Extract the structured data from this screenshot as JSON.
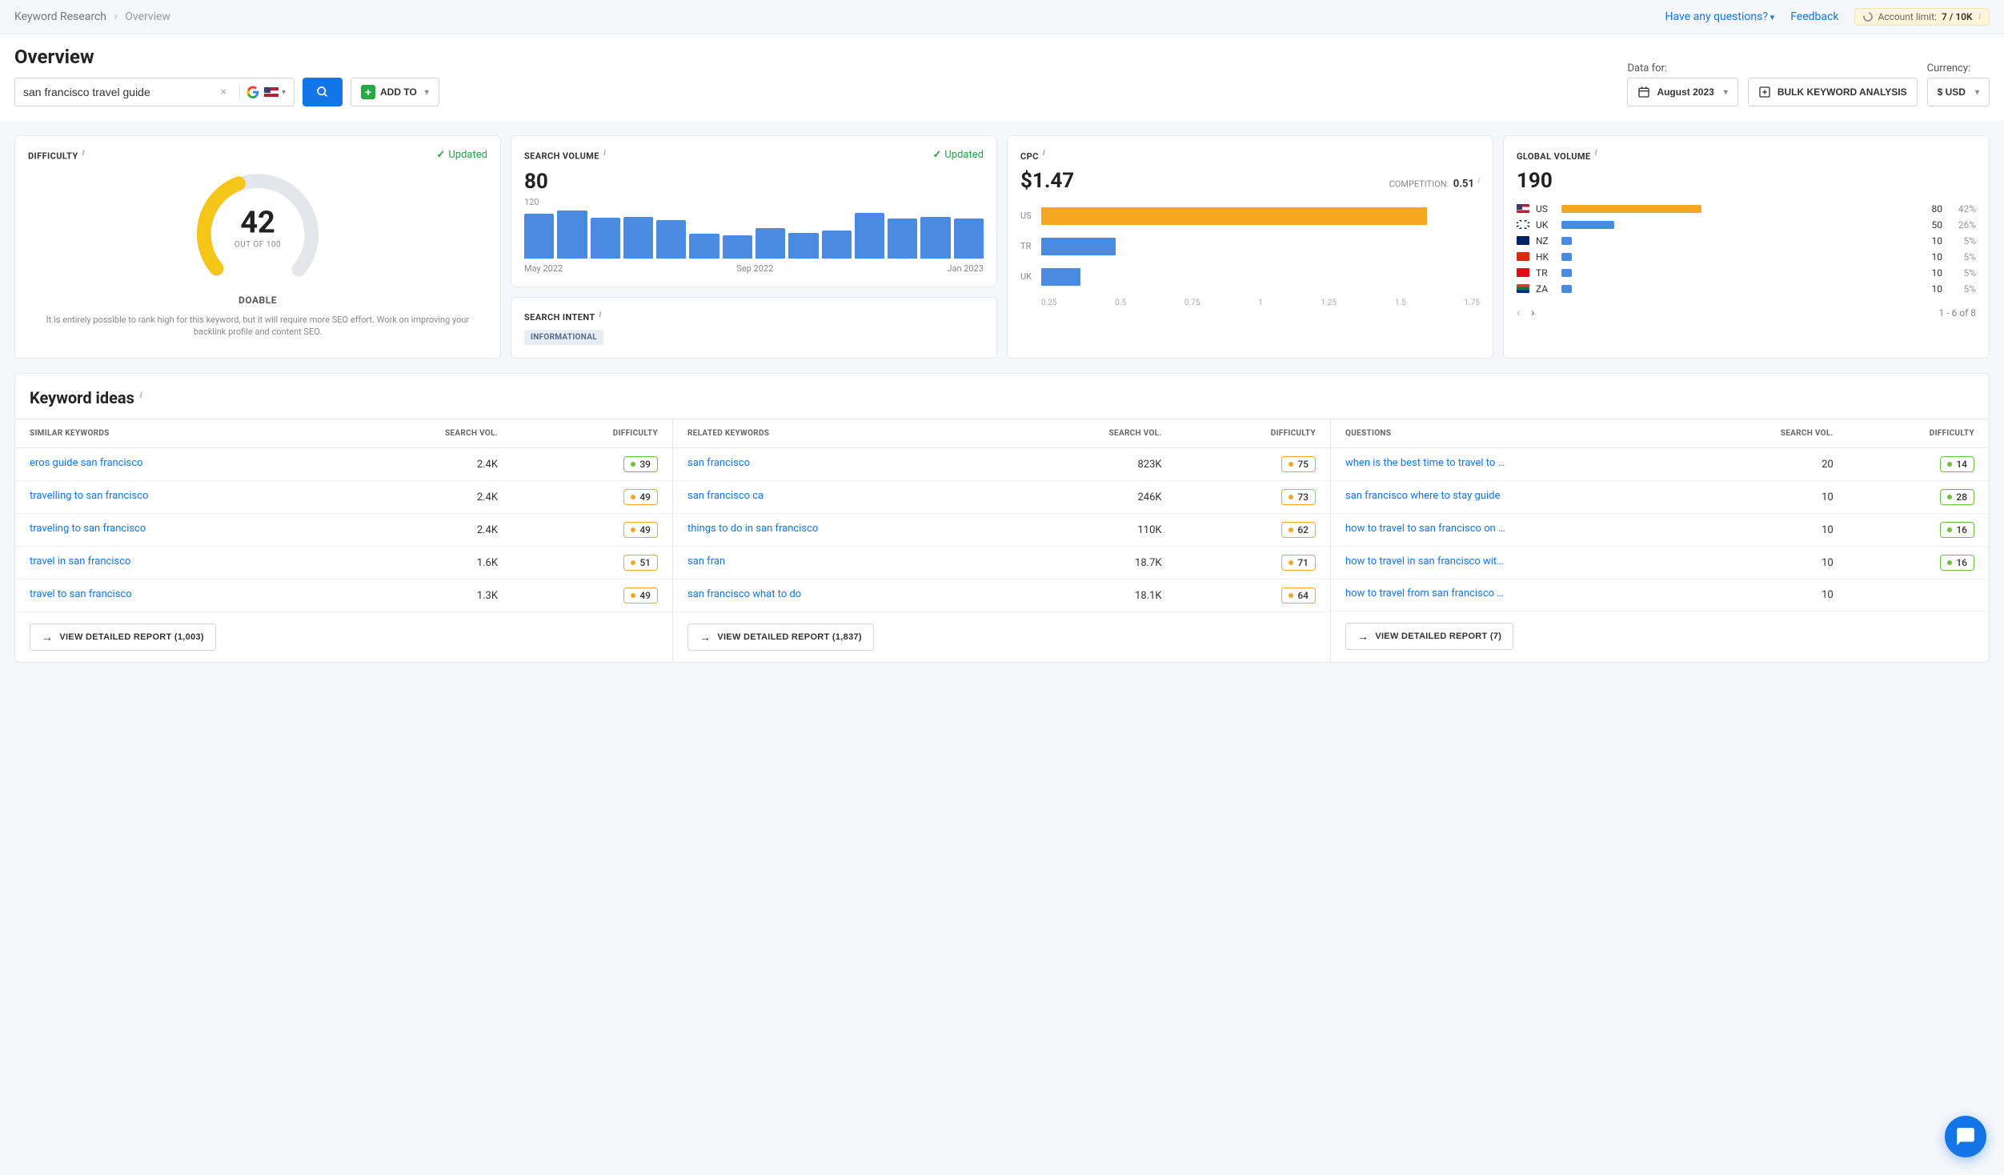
{
  "breadcrumb": {
    "parent": "Keyword Research",
    "current": "Overview"
  },
  "topbar": {
    "questions": "Have any questions?",
    "feedback": "Feedback",
    "account_label": "Account limit:",
    "account_value": "7 / 10K"
  },
  "header": {
    "title": "Overview",
    "search_value": "san francisco travel guide",
    "addto": "ADD TO",
    "datafor_label": "Data for:",
    "datafor_value": "August 2023",
    "bulk": "BULK KEYWORD ANALYSIS",
    "currency_label": "Currency:",
    "currency_value": "$ USD"
  },
  "difficulty": {
    "title": "DIFFICULTY",
    "updated": "Updated",
    "value": "42",
    "value_num": 42,
    "out_of": "OUT OF 100",
    "label": "DOABLE",
    "desc": "It is entirely possible to rank high for this keyword, but it will require more SEO effort. Work on improving your backlink profile and content SEO.",
    "gauge_color": "#f5c518",
    "gauge_track": "#e3e6ea"
  },
  "search_volume": {
    "title": "SEARCH VOLUME",
    "updated": "Updated",
    "value": "80",
    "y_label": "120",
    "bars": [
      88,
      95,
      80,
      82,
      76,
      48,
      45,
      60,
      50,
      55,
      90,
      78,
      82,
      78
    ],
    "bar_color": "#4a8ae0",
    "x_labels": [
      "May 2022",
      "Sep 2022",
      "Jan 2023"
    ]
  },
  "search_intent": {
    "title": "SEARCH INTENT",
    "pill": "INFORMATIONAL"
  },
  "cpc": {
    "title": "CPC",
    "value": "$1.47",
    "competition_label": "COMPETITION:",
    "competition_value": "0.51",
    "bars": [
      {
        "label": "US",
        "value": 0.88,
        "color": "#f5a623"
      },
      {
        "label": "TR",
        "value": 0.17,
        "color": "#4a8ae0"
      },
      {
        "label": "UK",
        "value": 0.09,
        "color": "#4a8ae0"
      }
    ],
    "axis": [
      "0.25",
      "0.5",
      "0.75",
      "1",
      "1.25",
      "1.5",
      "1.75"
    ]
  },
  "global": {
    "title": "GLOBAL VOLUME",
    "value": "190",
    "rows": [
      {
        "code": "US",
        "flag": "flag-us",
        "width": 40,
        "val": "80",
        "pct": "42%",
        "color": "#f5a623"
      },
      {
        "code": "UK",
        "flag": "flag-uk",
        "width": 15,
        "val": "50",
        "pct": "26%",
        "color": "#4a8ae0"
      },
      {
        "code": "NZ",
        "flag": "flag-nz",
        "width": 3,
        "val": "10",
        "pct": "5%",
        "color": "#4a8ae0"
      },
      {
        "code": "HK",
        "flag": "flag-hk",
        "width": 3,
        "val": "10",
        "pct": "5%",
        "color": "#4a8ae0"
      },
      {
        "code": "TR",
        "flag": "flag-tr",
        "width": 3,
        "val": "10",
        "pct": "5%",
        "color": "#4a8ae0"
      },
      {
        "code": "ZA",
        "flag": "flag-za",
        "width": 3,
        "val": "10",
        "pct": "5%",
        "color": "#4a8ae0"
      }
    ],
    "pager": "1 - 6 of 8"
  },
  "ideas": {
    "title": "Keyword ideas",
    "col_headers": {
      "similar": "SIMILAR KEYWORDS",
      "related": "RELATED KEYWORDS",
      "questions": "QUESTIONS",
      "vol": "SEARCH VOL.",
      "diff": "DIFFICULTY"
    },
    "similar": [
      {
        "kw": "eros guide san francisco",
        "vol": "2.4K",
        "diff": 39,
        "color": "#6fbf44"
      },
      {
        "kw": "travelling to san francisco",
        "vol": "2.4K",
        "diff": 49,
        "color": "#f5a623"
      },
      {
        "kw": "traveling to san francisco",
        "vol": "2.4K",
        "diff": 49,
        "color": "#f5a623"
      },
      {
        "kw": "travel in san francisco",
        "vol": "1.6K",
        "diff": 51,
        "color": "#f5a623"
      },
      {
        "kw": "travel to san francisco",
        "vol": "1.3K",
        "diff": 49,
        "color": "#f5a623"
      }
    ],
    "similar_report": "VIEW DETAILED REPORT (1,003)",
    "related": [
      {
        "kw": "san francisco",
        "vol": "823K",
        "diff": 75,
        "color": "#f5a623"
      },
      {
        "kw": "san francisco ca",
        "vol": "246K",
        "diff": 73,
        "color": "#f5a623"
      },
      {
        "kw": "things to do in san francisco",
        "vol": "110K",
        "diff": 62,
        "color": "#f5a623"
      },
      {
        "kw": "san fran",
        "vol": "18.7K",
        "diff": 71,
        "color": "#f5a623"
      },
      {
        "kw": "san francisco what to do",
        "vol": "18.1K",
        "diff": 64,
        "color": "#f5a623"
      }
    ],
    "related_report": "VIEW DETAILED REPORT (1,837)",
    "questions": [
      {
        "kw": "when is the best time to travel to …",
        "vol": "20",
        "diff": 14,
        "color": "#6fbf44"
      },
      {
        "kw": "san francisco where to stay guide",
        "vol": "10",
        "diff": 28,
        "color": "#6fbf44"
      },
      {
        "kw": "how to travel to san francisco on …",
        "vol": "10",
        "diff": 16,
        "color": "#6fbf44"
      },
      {
        "kw": "how to travel in san francisco wit…",
        "vol": "10",
        "diff": 16,
        "color": "#6fbf44"
      },
      {
        "kw": "how to travel from san francisco t…",
        "vol": "10",
        "diff": null,
        "color": "#6fbf44"
      }
    ],
    "questions_report": "VIEW DETAILED REPORT (7)"
  }
}
